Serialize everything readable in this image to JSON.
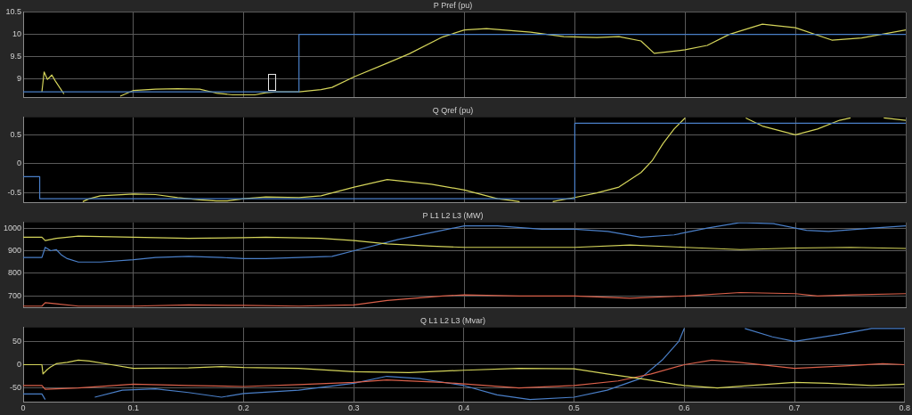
{
  "chart_data": [
    {
      "type": "line",
      "title": "P Pref (pu)",
      "xlim": [
        0,
        0.8
      ],
      "xticks": [
        0,
        0.1,
        0.2,
        0.3,
        0.4,
        0.5,
        0.6,
        0.7,
        0.8
      ],
      "ylim": [
        8.58,
        10.5
      ],
      "yticks": [
        9,
        9.5,
        10,
        10.5
      ],
      "grid": true,
      "tick_labels": "y",
      "series": [
        {
          "type": "step",
          "color": "#4a7fc8",
          "x": [
            0,
            0.25,
            0.8
          ],
          "values": [
            8.7,
            10,
            10
          ]
        },
        {
          "color": "#d4d45a",
          "x": [
            0.017,
            0.019,
            0.022,
            0.026,
            0.029,
            0.033,
            0.037,
            0.04,
            0.088,
            0.1,
            0.12,
            0.14,
            0.16,
            0.175,
            0.19,
            0.21,
            0.22,
            0.23,
            0.25,
            0.27,
            0.28,
            0.3,
            0.33,
            0.35,
            0.38,
            0.4,
            0.42,
            0.46,
            0.49,
            0.52,
            0.54,
            0.56,
            0.572,
            0.6,
            0.62,
            0.64,
            0.67,
            0.7,
            0.733,
            0.76,
            0.8
          ],
          "values": [
            8.7,
            9.15,
            8.98,
            9.08,
            8.95,
            8.8,
            8.65,
            null,
            8.6,
            8.73,
            8.76,
            8.77,
            8.76,
            8.67,
            8.63,
            8.63,
            8.68,
            8.7,
            8.7,
            8.75,
            8.8,
            9.04,
            9.35,
            9.56,
            9.94,
            10.1,
            10.13,
            10.05,
            9.95,
            9.93,
            9.95,
            9.85,
            9.57,
            9.65,
            9.75,
            10.0,
            10.23,
            10.15,
            9.87,
            9.92,
            10.1
          ]
        }
      ]
    },
    {
      "type": "line",
      "title": "Q Qref (pu)",
      "xlim": [
        0,
        0.8
      ],
      "xticks": [
        0,
        0.1,
        0.2,
        0.3,
        0.4,
        0.5,
        0.6,
        0.7,
        0.8
      ],
      "ylim": [
        -0.66,
        0.8
      ],
      "yticks": [
        -0.5,
        0,
        0.5
      ],
      "grid": true,
      "tick_labels": "y",
      "series": [
        {
          "type": "step",
          "color": "#4a7fc8",
          "x": [
            0,
            0.015,
            0.5,
            0.8
          ],
          "values": [
            -0.22,
            -0.6,
            0.7,
            0.7
          ]
        },
        {
          "color": "#d4d45a",
          "x": [
            0.054,
            0.06,
            0.07,
            0.1,
            0.12,
            0.14,
            0.16,
            0.175,
            0.185,
            0.2,
            0.22,
            0.25,
            0.27,
            0.3,
            0.33,
            0.37,
            0.4,
            0.43,
            0.45,
            0.46,
            0.48,
            0.5,
            0.52,
            0.54,
            0.56,
            0.57,
            0.58,
            0.59,
            0.6,
            0.61,
            0.655,
            0.67,
            0.7,
            0.72,
            0.74,
            0.75,
            0.76,
            0.78,
            0.8
          ],
          "values": [
            -0.65,
            -0.6,
            -0.55,
            -0.52,
            -0.53,
            -0.58,
            -0.62,
            -0.64,
            -0.64,
            -0.6,
            -0.57,
            -0.58,
            -0.55,
            -0.4,
            -0.27,
            -0.35,
            -0.45,
            -0.6,
            -0.65,
            null,
            -0.65,
            -0.58,
            -0.5,
            -0.4,
            -0.15,
            0.05,
            0.35,
            0.6,
            0.79,
            null,
            0.79,
            0.65,
            0.5,
            0.6,
            0.75,
            0.79,
            null,
            0.79,
            0.75
          ]
        }
      ]
    },
    {
      "type": "line",
      "title": "P L1 L2 L3 (MW)",
      "xlim": [
        0,
        0.8
      ],
      "xticks": [
        0,
        0.1,
        0.2,
        0.3,
        0.4,
        0.5,
        0.6,
        0.7,
        0.8
      ],
      "ylim": [
        650,
        1025
      ],
      "yticks": [
        700,
        800,
        900,
        1000
      ],
      "grid": true,
      "tick_labels": "y",
      "series": [
        {
          "color": "#d4d45a",
          "x": [
            0,
            0.017,
            0.02,
            0.03,
            0.05,
            0.1,
            0.15,
            0.2,
            0.22,
            0.27,
            0.3,
            0.33,
            0.37,
            0.4,
            0.5,
            0.55,
            0.6,
            0.65,
            0.7,
            0.75,
            0.8
          ],
          "values": [
            960,
            960,
            945,
            955,
            965,
            960,
            955,
            958,
            960,
            955,
            945,
            930,
            920,
            915,
            915,
            925,
            915,
            905,
            912,
            915,
            910
          ]
        },
        {
          "color": "#4a7fc8",
          "x": [
            0,
            0.017,
            0.02,
            0.025,
            0.03,
            0.035,
            0.04,
            0.05,
            0.07,
            0.1,
            0.12,
            0.15,
            0.18,
            0.2,
            0.22,
            0.25,
            0.28,
            0.3,
            0.34,
            0.38,
            0.4,
            0.43,
            0.47,
            0.5,
            0.53,
            0.56,
            0.59,
            0.62,
            0.65,
            0.68,
            0.71,
            0.73,
            0.77,
            0.8
          ],
          "values": [
            870,
            870,
            915,
            900,
            905,
            880,
            865,
            850,
            850,
            860,
            870,
            875,
            870,
            865,
            865,
            870,
            875,
            900,
            950,
            990,
            1010,
            1010,
            995,
            995,
            985,
            960,
            970,
            1000,
            1025,
            1020,
            990,
            985,
            1000,
            1010
          ]
        },
        {
          "color": "#d9604a",
          "x": [
            0,
            0.017,
            0.02,
            0.03,
            0.05,
            0.1,
            0.15,
            0.2,
            0.25,
            0.3,
            0.33,
            0.38,
            0.4,
            0.45,
            0.5,
            0.55,
            0.6,
            0.65,
            0.7,
            0.72,
            0.75,
            0.8
          ],
          "values": [
            655,
            655,
            670,
            665,
            655,
            655,
            660,
            658,
            655,
            660,
            680,
            700,
            705,
            700,
            700,
            690,
            700,
            715,
            710,
            700,
            705,
            710
          ]
        }
      ]
    },
    {
      "type": "line",
      "title": "Q L1 L2 L3 (Mvar)",
      "xlim": [
        0,
        0.8
      ],
      "xticks": [
        0,
        0.1,
        0.2,
        0.3,
        0.4,
        0.5,
        0.6,
        0.7,
        0.8
      ],
      "ylim": [
        -80,
        80
      ],
      "yticks": [
        -50,
        0,
        50
      ],
      "grid": true,
      "series": [
        {
          "color": "#d4d45a",
          "x": [
            0,
            0.017,
            0.018,
            0.022,
            0.025,
            0.03,
            0.04,
            0.05,
            0.06,
            0.08,
            0.1,
            0.15,
            0.18,
            0.2,
            0.25,
            0.3,
            0.35,
            0.4,
            0.45,
            0.5,
            0.53,
            0.56,
            0.6,
            0.63,
            0.66,
            0.7,
            0.73,
            0.77,
            0.8
          ],
          "values": [
            0,
            0,
            -20,
            -10,
            -5,
            2,
            5,
            10,
            8,
            0,
            -8,
            -7,
            -4,
            -6,
            -8,
            -15,
            -17,
            -12,
            -8,
            -9,
            -20,
            -30,
            -45,
            -50,
            -45,
            -38,
            -40,
            -45,
            -42
          ]
        },
        {
          "color": "#d9604a",
          "x": [
            0,
            0.017,
            0.02,
            0.05,
            0.1,
            0.15,
            0.2,
            0.25,
            0.3,
            0.33,
            0.38,
            0.42,
            0.45,
            0.5,
            0.54,
            0.57,
            0.6,
            0.625,
            0.65,
            0.7,
            0.75,
            0.78,
            0.8
          ],
          "values": [
            -45,
            -45,
            -53,
            -50,
            -42,
            -45,
            -47,
            -43,
            -38,
            -33,
            -38,
            -45,
            -50,
            -45,
            -35,
            -20,
            0,
            10,
            5,
            -8,
            -2,
            2,
            0
          ]
        },
        {
          "color": "#4a7fc8",
          "x": [
            0,
            0.017,
            0.02,
            0.04,
            0.065,
            0.09,
            0.12,
            0.15,
            0.18,
            0.2,
            0.25,
            0.3,
            0.33,
            0.36,
            0.4,
            0.43,
            0.46,
            0.5,
            0.53,
            0.56,
            0.58,
            0.595,
            0.6,
            0.62,
            0.655,
            0.68,
            0.7,
            0.74,
            0.77,
            0.8
          ],
          "values": [
            -63,
            -63,
            -75,
            null,
            -70,
            -55,
            -52,
            -60,
            -70,
            -62,
            -55,
            -40,
            -25,
            -30,
            -45,
            -65,
            -75,
            -70,
            -55,
            -30,
            10,
            50,
            78,
            null,
            78,
            60,
            50,
            65,
            78,
            78
          ]
        }
      ]
    }
  ]
}
